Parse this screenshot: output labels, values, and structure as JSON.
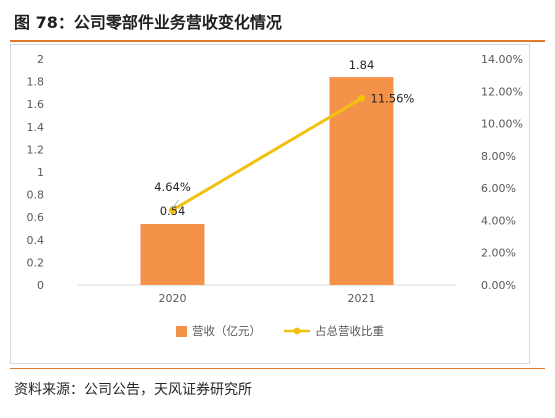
{
  "page": {
    "title": "图 78：公司零部件业务营收变化情况",
    "source": "资料来源：公司公告，天风证券研究所"
  },
  "colors": {
    "accent_rule": "#e07a2c",
    "bar": "#f5924a",
    "line": "#f2c00d"
  },
  "chart_data": {
    "type": "bar",
    "categories": [
      "2020",
      "2021"
    ],
    "series": [
      {
        "name": "营收（亿元）",
        "type": "bar",
        "axis": "left",
        "values": [
          0.54,
          1.84
        ],
        "labels": [
          "0.54",
          "1.84"
        ]
      },
      {
        "name": "占总营收比重",
        "type": "line",
        "axis": "right",
        "values": [
          4.64,
          11.56
        ],
        "labels": [
          "4.64%",
          "11.56%"
        ]
      }
    ],
    "y_left": {
      "lim": [
        0,
        2
      ],
      "ticks": [
        "0",
        "0.2",
        "0.4",
        "0.6",
        "0.8",
        "1",
        "1.2",
        "1.4",
        "1.6",
        "1.8",
        "2"
      ]
    },
    "y_right": {
      "lim": [
        0,
        14
      ],
      "ticks": [
        "0.00%",
        "2.00%",
        "4.00%",
        "6.00%",
        "8.00%",
        "10.00%",
        "12.00%",
        "14.00%"
      ]
    },
    "grid": false,
    "legend": "bottom"
  }
}
